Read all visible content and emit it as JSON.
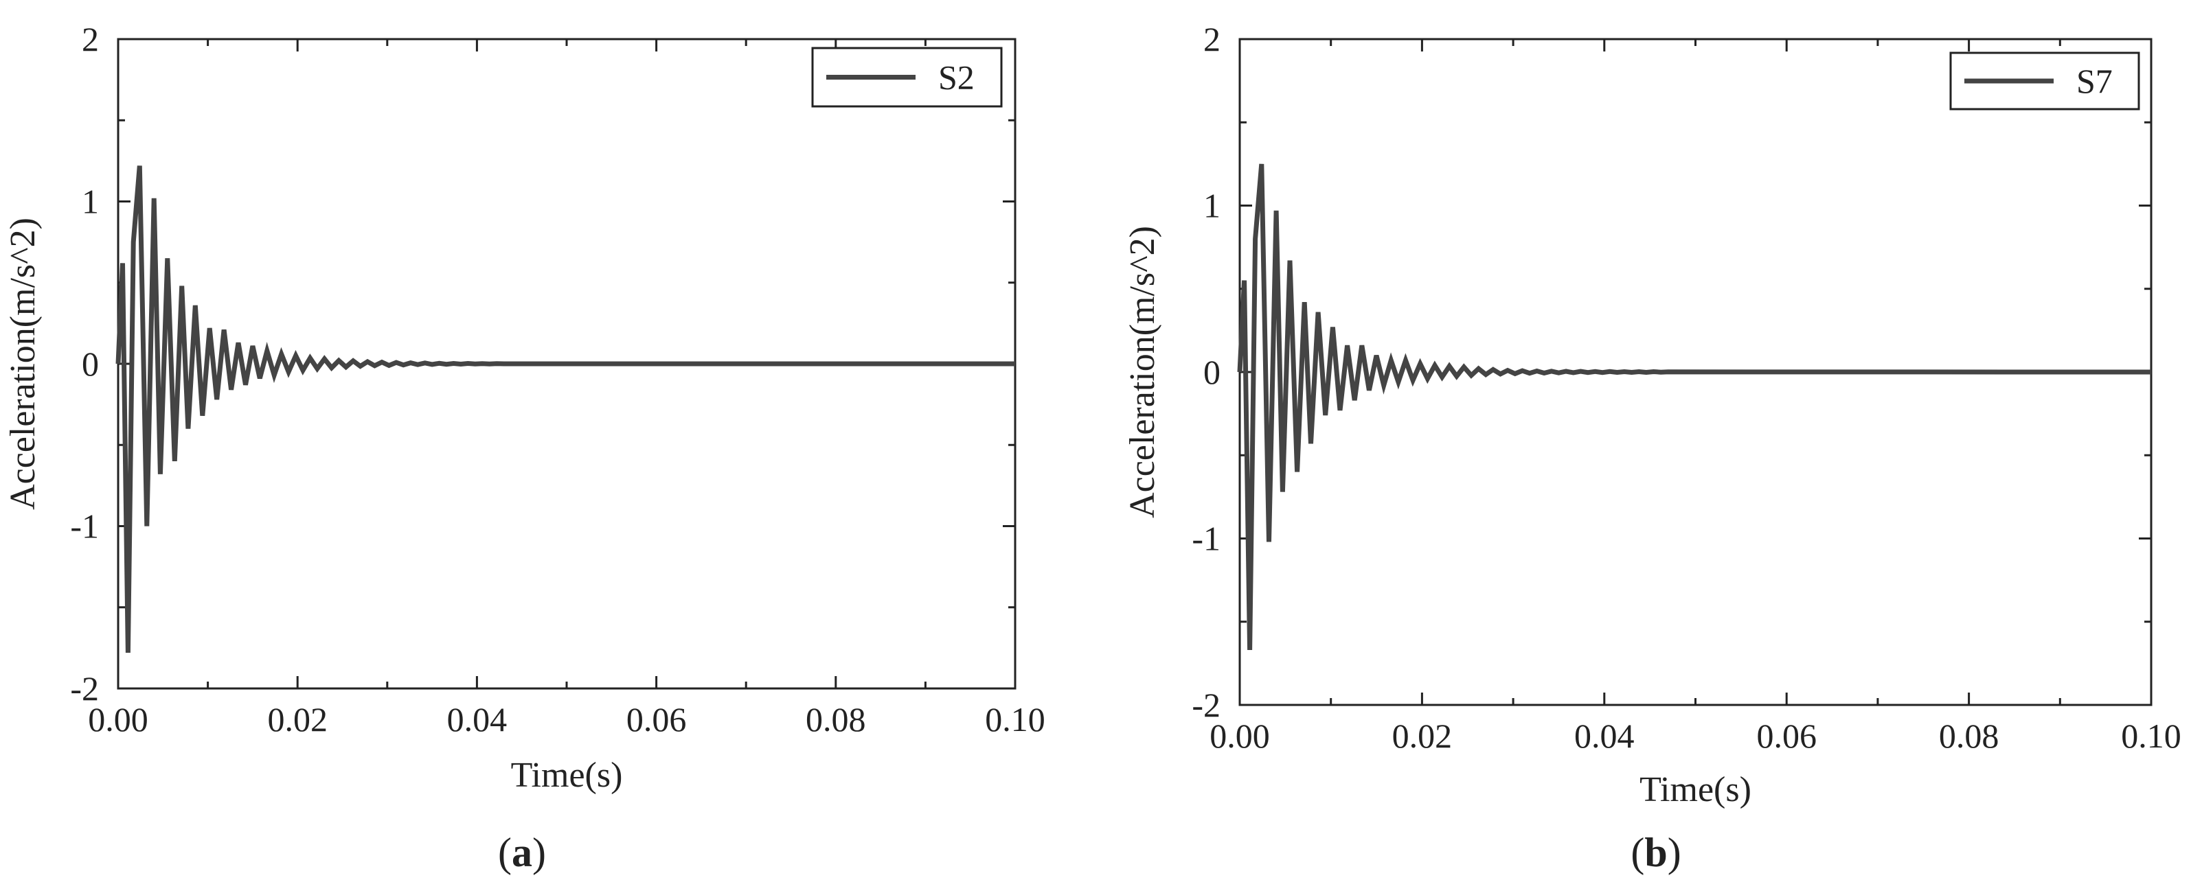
{
  "chart_data": [
    {
      "type": "line",
      "panel_label": "(a)",
      "xlabel": "Time(s)",
      "ylabel": "Acceleration(m/s^2)",
      "xlim": [
        0,
        0.1
      ],
      "ylim": [
        -2,
        2
      ],
      "x_tick_labels": [
        "0.00",
        "0.02",
        "0.04",
        "0.06",
        "0.08",
        "0.10"
      ],
      "y_tick_labels": [
        "2",
        "1",
        "0",
        "-1",
        "-2"
      ],
      "legend_position": "top-right",
      "line_color": "#444444",
      "series": [
        {
          "name": "S2",
          "x": [
            0.0,
            0.0005,
            0.0011,
            0.0017,
            0.0024,
            0.0032,
            0.004,
            0.0047,
            0.0055,
            0.0063,
            0.0071,
            0.0078,
            0.0086,
            0.0094,
            0.0102,
            0.011,
            0.0118,
            0.0126,
            0.0134,
            0.0142,
            0.015,
            0.0158,
            0.0166,
            0.0174,
            0.0182,
            0.019,
            0.0198,
            0.0206,
            0.0214,
            0.0222,
            0.023,
            0.0238,
            0.0246,
            0.0254,
            0.0262,
            0.027,
            0.0278,
            0.0286,
            0.0294,
            0.0302,
            0.031,
            0.0318,
            0.0326,
            0.0334,
            0.0342,
            0.035,
            0.0358,
            0.0366,
            0.0374,
            0.0382,
            0.039,
            0.0398,
            0.0406,
            0.0414,
            0.0422,
            0.043,
            0.0438,
            0.0446,
            0.0454,
            0.0462,
            0.047,
            0.1
          ],
          "y": [
            0.0,
            0.62,
            -1.78,
            0.75,
            1.22,
            -1.0,
            1.02,
            -0.68,
            0.65,
            -0.6,
            0.48,
            -0.4,
            0.36,
            -0.32,
            0.22,
            -0.22,
            0.21,
            -0.16,
            0.13,
            -0.13,
            0.11,
            -0.09,
            0.08,
            -0.07,
            0.06,
            -0.05,
            0.05,
            -0.04,
            0.035,
            -0.03,
            0.03,
            -0.025,
            0.02,
            -0.02,
            0.018,
            -0.015,
            0.013,
            -0.012,
            0.01,
            -0.01,
            0.008,
            -0.007,
            0.006,
            -0.005,
            0.005,
            -0.004,
            0.003,
            -0.003,
            0.002,
            -0.002,
            0.002,
            -0.001,
            0.001,
            -0.001,
            0.001,
            0.0,
            0.0,
            0.0,
            0.0,
            0.0,
            0.0,
            0.0
          ]
        }
      ]
    },
    {
      "type": "line",
      "panel_label": "(b)",
      "xlabel": "Time(s)",
      "ylabel": "Acceleration(m/s^2)",
      "xlim": [
        0,
        0.1
      ],
      "ylim": [
        -2,
        2
      ],
      "x_tick_labels": [
        "0.00",
        "0.02",
        "0.04",
        "0.06",
        "0.08",
        "0.10"
      ],
      "y_tick_labels": [
        "2",
        "1",
        "0",
        "-1",
        "-2"
      ],
      "legend_position": "top-right",
      "line_color": "#444444",
      "series": [
        {
          "name": "S7",
          "x": [
            0.0,
            0.0005,
            0.0011,
            0.0017,
            0.0024,
            0.0032,
            0.004,
            0.0047,
            0.0055,
            0.0063,
            0.0071,
            0.0078,
            0.0086,
            0.0094,
            0.0102,
            0.011,
            0.0118,
            0.0126,
            0.0134,
            0.0142,
            0.015,
            0.0158,
            0.0166,
            0.0174,
            0.0182,
            0.019,
            0.0198,
            0.0206,
            0.0214,
            0.0222,
            0.023,
            0.0238,
            0.0246,
            0.0254,
            0.0262,
            0.027,
            0.0278,
            0.0286,
            0.0294,
            0.0302,
            0.031,
            0.0318,
            0.0326,
            0.0334,
            0.0342,
            0.035,
            0.0358,
            0.0366,
            0.0374,
            0.0382,
            0.039,
            0.0398,
            0.0406,
            0.0414,
            0.0422,
            0.043,
            0.0438,
            0.0446,
            0.0454,
            0.0462,
            0.047,
            0.1
          ],
          "y": [
            0.0,
            0.55,
            -1.67,
            0.8,
            1.25,
            -1.02,
            0.97,
            -0.72,
            0.67,
            -0.6,
            0.42,
            -0.43,
            0.36,
            -0.26,
            0.27,
            -0.23,
            0.16,
            -0.17,
            0.16,
            -0.11,
            0.1,
            -0.08,
            0.07,
            -0.06,
            0.07,
            -0.05,
            0.05,
            -0.04,
            0.04,
            -0.03,
            0.035,
            -0.025,
            0.03,
            -0.02,
            0.02,
            -0.015,
            0.015,
            -0.012,
            0.01,
            -0.01,
            0.008,
            -0.007,
            0.006,
            -0.006,
            0.005,
            -0.005,
            0.004,
            -0.004,
            0.004,
            -0.003,
            0.003,
            -0.003,
            0.003,
            -0.002,
            0.002,
            -0.002,
            0.002,
            -0.002,
            0.002,
            -0.001,
            0.001,
            0.0
          ]
        }
      ]
    }
  ]
}
